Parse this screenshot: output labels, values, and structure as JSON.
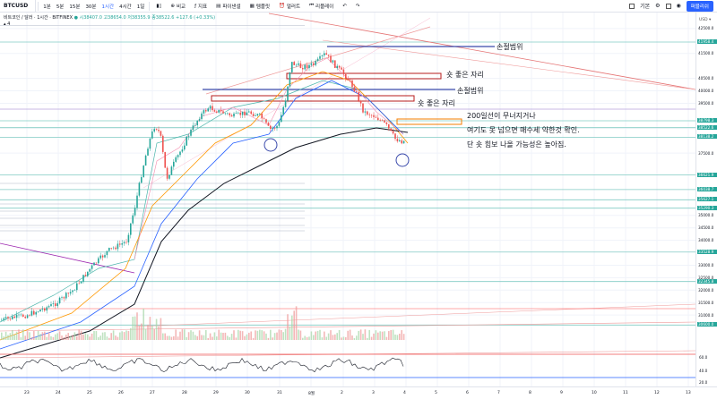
{
  "toolbar": {
    "symbol": "BTCUSD",
    "intervals": [
      "1분",
      "5분",
      "15분",
      "30분",
      "1시간",
      "4시간",
      "1일"
    ],
    "active_interval": "1시간",
    "tools": [
      {
        "icon": "compare-icon",
        "label": "비교"
      },
      {
        "icon": "indicator-icon",
        "label": "지표"
      },
      {
        "icon": "financials-icon",
        "label": "파이낸셜"
      },
      {
        "icon": "template-icon",
        "label": "템플릿"
      },
      {
        "icon": "alert-icon",
        "label": "얼러트"
      },
      {
        "icon": "replay-icon",
        "label": "리플레이"
      }
    ],
    "layout_label": "기본",
    "publish_label": "퍼블리쉬"
  },
  "legend": {
    "title": "비트코인 / 달러 · 1시간 · BITFINEX",
    "ohlc": "시38407.0 고38654.0 저38355.9 종38522.6 +127.6 (+0.33%)",
    "indicator_count": "4"
  },
  "currency": "USD ▾",
  "price_axis": {
    "min": 30000,
    "max": 43000,
    "ticks": [
      {
        "value": 42500,
        "label": "42500.0"
      },
      {
        "value": 41500,
        "label": "41500.0"
      },
      {
        "value": 40500,
        "label": "40500.0"
      },
      {
        "value": 40000,
        "label": "40000.0"
      },
      {
        "value": 39500,
        "label": "39500.0"
      },
      {
        "value": 38500,
        "label": "38500.0"
      },
      {
        "value": 37500,
        "label": "37500.0"
      },
      {
        "value": 35000,
        "label": "35000.0"
      },
      {
        "value": 34500,
        "label": "34500.0"
      },
      {
        "value": 34000,
        "label": "34000.0"
      },
      {
        "value": 33000,
        "label": "33000.0"
      },
      {
        "value": 32500,
        "label": "32500.0"
      },
      {
        "value": 32000,
        "label": "32000.0"
      },
      {
        "value": 31500,
        "label": "31500.0"
      },
      {
        "value": 31000,
        "label": "31000.0"
      }
    ],
    "badges": [
      {
        "value": 41958.4,
        "label": "41958.4",
        "color": "#26a69a"
      },
      {
        "value": 38798.3,
        "label": "38798.3",
        "color": "#26a69a"
      },
      {
        "value": 38522.6,
        "label": "38522.6",
        "color": "#26a69a"
      },
      {
        "value": 38138.2,
        "label": "38138.2",
        "color": "#26a69a"
      },
      {
        "value": 36621.9,
        "label": "36621.9",
        "color": "#26a69a"
      },
      {
        "value": 36038.7,
        "label": "36038.7",
        "color": "#26a69a"
      },
      {
        "value": 35627.1,
        "label": "35627.1",
        "color": "#26a69a"
      },
      {
        "value": 35290.3,
        "label": "35290.3",
        "color": "#26a69a"
      },
      {
        "value": 33528.9,
        "label": "33528.9",
        "color": "#26a69a"
      },
      {
        "value": 32345.8,
        "label": "32345.8",
        "color": "#26a69a"
      },
      {
        "value": 30600.0,
        "label": "30600.0",
        "color": "#26a69a"
      }
    ],
    "rsi_ticks": [
      "60.0",
      "40.0",
      "20.0"
    ]
  },
  "time_axis": {
    "labels": [
      "23",
      "24",
      "25",
      "26",
      "27",
      "28",
      "29",
      "30",
      "31",
      "8월",
      "2",
      "3",
      "4",
      "5",
      "6",
      "7",
      "8",
      "9",
      "10",
      "11",
      "12",
      "13"
    ]
  },
  "annotations": [
    {
      "text": "손절범위",
      "color": "#3949ab"
    },
    {
      "text": "숏 좋은 자리",
      "color": "#b71c1c"
    },
    {
      "text": "손절범위",
      "color": "#3949ab"
    },
    {
      "text": "숏 좋은 자리",
      "color": "#b71c1c"
    },
    {
      "text": "200일선이 무너지거나",
      "color": "#f57c00"
    },
    {
      "text": "여기도 못 넘으면 매수세 약한것 확인.",
      "color": "#f57c00"
    },
    {
      "text": "단 숏 힘보 나올 가능성은 높아짐.",
      "color": "#f57c00"
    }
  ],
  "colors": {
    "up": "#26a69a",
    "down": "#ef5350",
    "grid": "#f0f3fa",
    "ma_orange": "#ff9800",
    "ma_blue": "#2962ff",
    "ma_black": "#131722",
    "ma_teal": "#4db6ac",
    "trend_red": "#e57373"
  }
}
